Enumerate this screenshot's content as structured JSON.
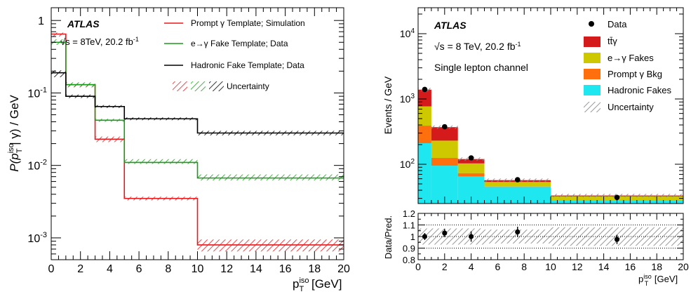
{
  "chart_data": [
    {
      "type": "line",
      "panel": "left",
      "ylabel_parts": [
        "P(p",
        "iso",
        "T",
        " | γ) / GeV"
      ],
      "xlabel_parts": [
        "p",
        "iso",
        "T",
        " [GeV]"
      ],
      "atlas": "ATLAS",
      "energy_parts": [
        "√s = 8TeV, 20.2 fb",
        "-1"
      ],
      "xlim": [
        0,
        20
      ],
      "ylim": [
        0.0005,
        1.5
      ],
      "yscale": "log",
      "xticks": [
        "0",
        "2",
        "4",
        "6",
        "8",
        "10",
        "12",
        "14",
        "16",
        "18",
        "20"
      ],
      "yticks": [
        {
          "value": 1,
          "base": "1",
          "exp": ""
        },
        {
          "value": 0.1,
          "base": "10",
          "exp": "-1"
        },
        {
          "value": 0.01,
          "base": "10",
          "exp": "-2"
        },
        {
          "value": 0.001,
          "base": "10",
          "exp": "-3"
        }
      ],
      "bin_edges": [
        0,
        1,
        3,
        5,
        10,
        20
      ],
      "series": [
        {
          "name": "Prompt γ Template; Simulation",
          "color": "#e8191c",
          "values": [
            0.65,
            0.13,
            0.023,
            0.0035,
            0.0008
          ],
          "unc_low": [
            0.6,
            0.12,
            0.021,
            0.0033,
            0.00065
          ],
          "unc_high": [
            0.68,
            0.135,
            0.025,
            0.0037,
            0.00095
          ]
        },
        {
          "name": "e→γ Fake Template; Data",
          "color": "#1b9a1b",
          "values": [
            0.5,
            0.13,
            0.042,
            0.011,
            0.0067
          ],
          "unc_low": [
            0.46,
            0.12,
            0.04,
            0.0105,
            0.0062
          ],
          "unc_high": [
            0.55,
            0.14,
            0.044,
            0.0122,
            0.0075
          ]
        },
        {
          "name": "Hadronic Fake Template; Data",
          "color": "#000000",
          "values": [
            0.19,
            0.09,
            0.065,
            0.044,
            0.028
          ],
          "unc_low": [
            0.165,
            0.085,
            0.062,
            0.042,
            0.026
          ],
          "unc_high": [
            0.205,
            0.095,
            0.068,
            0.046,
            0.03
          ]
        }
      ],
      "uncertainty_label": "Uncertainty"
    },
    {
      "type": "bar",
      "panel": "right-top",
      "ylabel": "Events / GeV",
      "atlas": "ATLAS",
      "energy_parts": [
        "√s = 8 TeV, 20.2 fb",
        "-1"
      ],
      "channel": "Single lepton channel",
      "xlim": [
        0,
        20
      ],
      "ylim": [
        25,
        25000
      ],
      "yscale": "log",
      "yticks": [
        {
          "value": 100,
          "base": "10",
          "exp": "2"
        },
        {
          "value": 1000,
          "base": "10",
          "exp": "3"
        },
        {
          "value": 10000,
          "base": "10",
          "exp": "4"
        }
      ],
      "bin_edges": [
        0,
        1,
        3,
        5,
        10,
        20
      ],
      "stack": [
        {
          "name": "Hadronic Fakes",
          "color": "#1fe7ef",
          "values": [
            210,
            95,
            65,
            45,
            28
          ]
        },
        {
          "name": "Prompt γ Bkg",
          "color": "#ff6f0e",
          "values": [
            180,
            30,
            8,
            0.5,
            0.2
          ]
        },
        {
          "name": "e→γ Fakes",
          "color": "#cdc800",
          "values": [
            380,
            105,
            30,
            8,
            4
          ]
        },
        {
          "name": "tt̄γ",
          "color": "#d41a1a",
          "values": [
            620,
            140,
            17,
            3.5,
            1
          ]
        }
      ],
      "data_label": "Data",
      "data": [
        1400,
        375,
        125,
        58,
        31
      ],
      "data_x": [
        0.5,
        2,
        4,
        7.5,
        15
      ],
      "uncertainty_label": "Uncertainty"
    },
    {
      "type": "scatter",
      "panel": "right-bottom",
      "ylabel": "Data/Pred.",
      "xlabel_parts": [
        "p",
        "iso",
        "T",
        " [GeV]"
      ],
      "xlim": [
        0,
        20
      ],
      "ylim": [
        0.8,
        1.2
      ],
      "xticks": [
        "0",
        "2",
        "4",
        "6",
        "8",
        "10",
        "12",
        "14",
        "16",
        "18",
        "20"
      ],
      "yticks": [
        "0.8",
        "0.9",
        "1",
        "1.1",
        "1.2"
      ],
      "x": [
        0.5,
        2,
        4,
        7.5,
        15
      ],
      "y": [
        1.0,
        1.03,
        1.0,
        1.04,
        0.975
      ],
      "err": [
        0.03,
        0.035,
        0.045,
        0.045,
        0.04
      ],
      "unc_band": [
        0.07,
        0.07,
        0.07,
        0.06,
        0.08
      ]
    }
  ]
}
